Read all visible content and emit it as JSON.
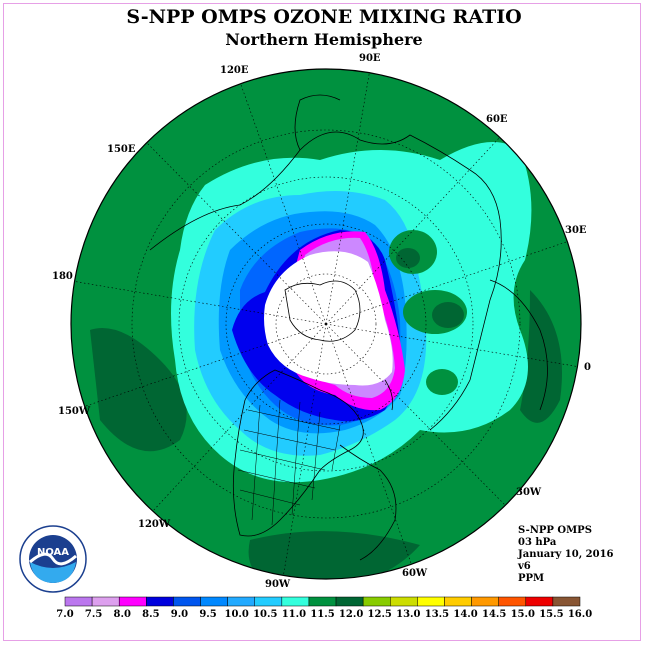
{
  "header": {
    "title": "S-NPP OMPS OZONE MIXING RATIO",
    "subtitle": "Northern Hemisphere"
  },
  "map": {
    "longitude_labels": [
      "90E",
      "60E",
      "30E",
      "0",
      "30W",
      "60W",
      "90W",
      "120W",
      "150W",
      "180",
      "150E",
      "120E"
    ],
    "colors": {
      "ocean_fill": "#00913f",
      "dark_fill": "#006633",
      "cyan_fill": "#33ffdd",
      "sky_fill": "#22ccff",
      "light_blue": "#0099ff",
      "blue": "#0066ff",
      "deep_blue": "#0000ee",
      "magenta": "#ff00ff",
      "lavender": "#cc88ff",
      "center": "#ffffff"
    }
  },
  "info": {
    "line1": "S-NPP OMPS",
    "line2": "03 hPa",
    "line3": "January 10, 2016",
    "line4": "v6",
    "line5": "PPM"
  },
  "logo": {
    "text": "NOAA",
    "ring_text": "NATIONAL OCEANIC AND ATMOSPHERIC ADMINISTRATION · U.S. DEPARTMENT OF COMMERCE"
  },
  "colorbar": {
    "labels": [
      "7.0",
      "7.5",
      "8.0",
      "8.5",
      "9.0",
      "9.5",
      "10.0",
      "10.5",
      "11.0",
      "11.5",
      "12.0",
      "12.5",
      "13.0",
      "13.5",
      "14.0",
      "14.5",
      "15.0",
      "15.5",
      "16.0"
    ],
    "colors": [
      "#bb77ee",
      "#dda0ee",
      "#ff00ff",
      "#0000dd",
      "#0055ee",
      "#0088ff",
      "#22aaff",
      "#22ccff",
      "#33ffdd",
      "#00913f",
      "#006633",
      "#88cc00",
      "#ccdd00",
      "#ffff00",
      "#ffcc00",
      "#ff9900",
      "#ff5500",
      "#ee0000",
      "#885533"
    ]
  }
}
